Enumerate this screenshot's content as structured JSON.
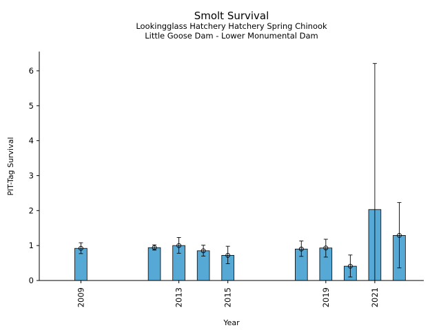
{
  "chart_data": {
    "type": "bar",
    "title": "Smolt Survival",
    "subtitle_lines": [
      "Lookingglass Hatchery Hatchery Spring Chinook",
      "Little Goose Dam - Lower Monumental Dam"
    ],
    "xlabel": "Year",
    "ylabel": "PIT-Tag Survival",
    "xlim": [
      2007.3,
      2023.0
    ],
    "ylim": [
      0,
      6.55
    ],
    "x_ticks": [
      2009,
      2013,
      2015,
      2019,
      2021
    ],
    "y_ticks": [
      0,
      1,
      2,
      3,
      4,
      5,
      6
    ],
    "grid": false,
    "legend": "none",
    "bar_color": "#56a9d5",
    "series": [
      {
        "x": [
          2009,
          2012,
          2013,
          2014,
          2015,
          2018,
          2019,
          2020,
          2021,
          2022
        ],
        "values": [
          0.92,
          0.94,
          1.0,
          0.85,
          0.72,
          0.9,
          0.93,
          0.41,
          2.03,
          1.29
        ],
        "lower": [
          0.77,
          0.87,
          0.78,
          0.7,
          0.48,
          0.69,
          0.67,
          0.1,
          null,
          0.36
        ],
        "upper": [
          1.08,
          1.02,
          1.23,
          1.01,
          0.98,
          1.13,
          1.18,
          0.73,
          6.21,
          2.23
        ],
        "point": [
          true,
          true,
          true,
          true,
          true,
          true,
          true,
          true,
          false,
          true
        ]
      }
    ]
  }
}
